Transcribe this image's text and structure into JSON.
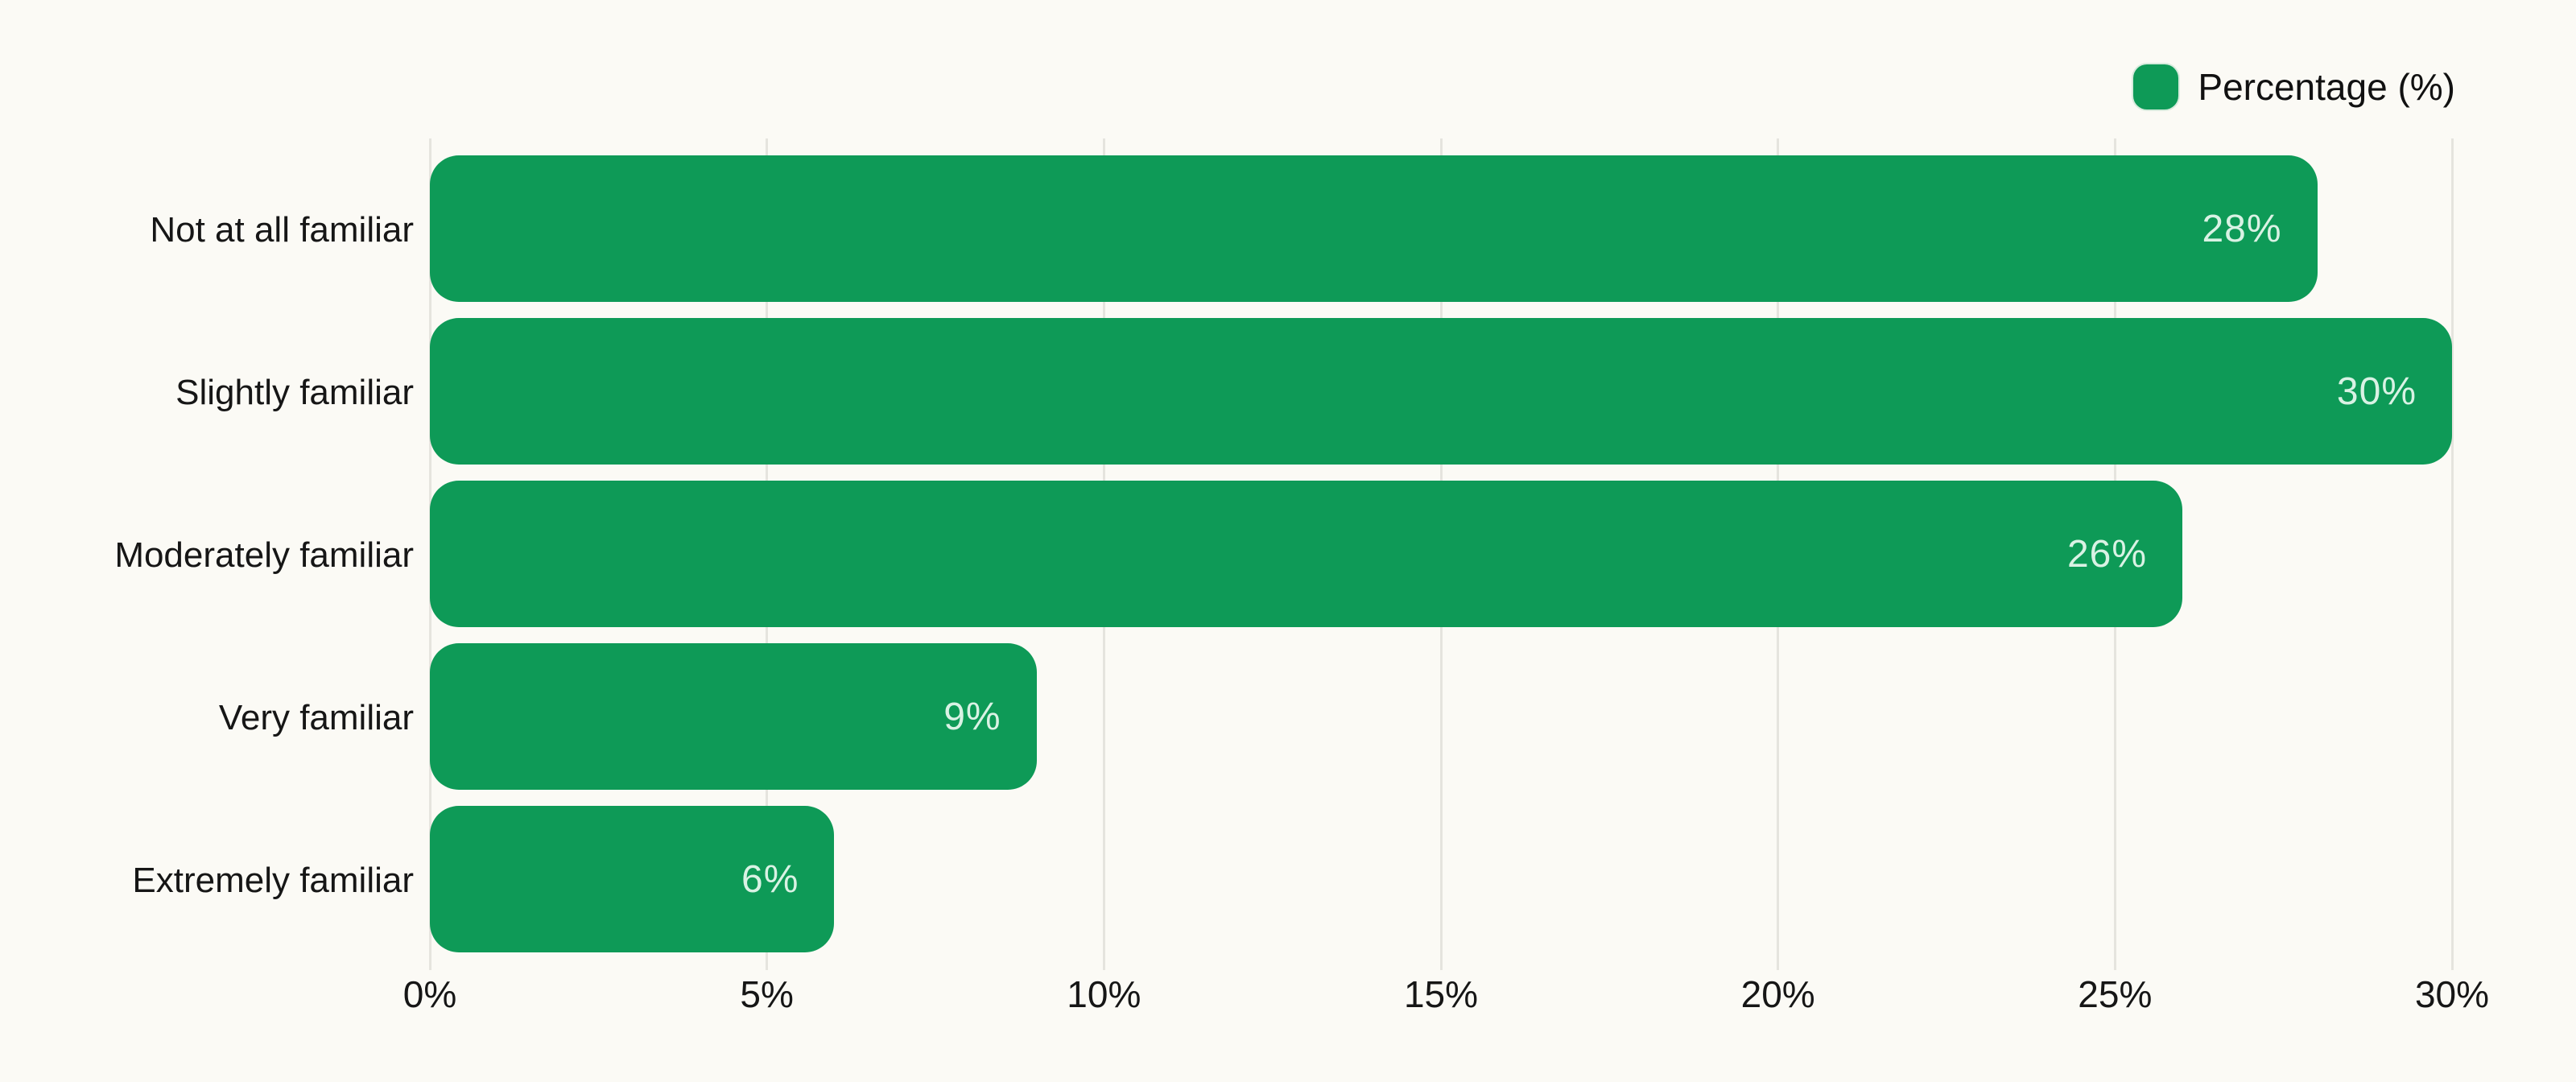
{
  "colors": {
    "background": "#fbfaf5",
    "bar": "#0e9a57",
    "bar_value_text": "#d9f2e4",
    "gridline": "#e5e4de",
    "axis_text": "#161616",
    "legend_text": "#111111"
  },
  "legend": {
    "label": "Percentage (%)",
    "swatch_color": "#0e9a57",
    "position": "top-right"
  },
  "chart_data": {
    "type": "bar",
    "orientation": "horizontal",
    "title": "",
    "xlabel": "",
    "ylabel": "",
    "categories": [
      "Not at all familiar",
      "Slightly familiar",
      "Moderately familiar",
      "Very familiar",
      "Extremely familiar"
    ],
    "series": [
      {
        "name": "Percentage (%)",
        "values": [
          28,
          30,
          26,
          9,
          6
        ]
      }
    ],
    "values": [
      28,
      30,
      26,
      9,
      6
    ],
    "value_labels": [
      "28%",
      "30%",
      "26%",
      "9%",
      "6%"
    ],
    "xlim": [
      0,
      30
    ],
    "xticks": [
      0,
      5,
      10,
      15,
      20,
      25,
      30
    ],
    "xtick_labels": [
      "0%",
      "5%",
      "10%",
      "15%",
      "20%",
      "25%",
      "30%"
    ],
    "grid": "vertical",
    "legend_position": "top-right",
    "legend_entries": [
      "Percentage (%)"
    ]
  }
}
